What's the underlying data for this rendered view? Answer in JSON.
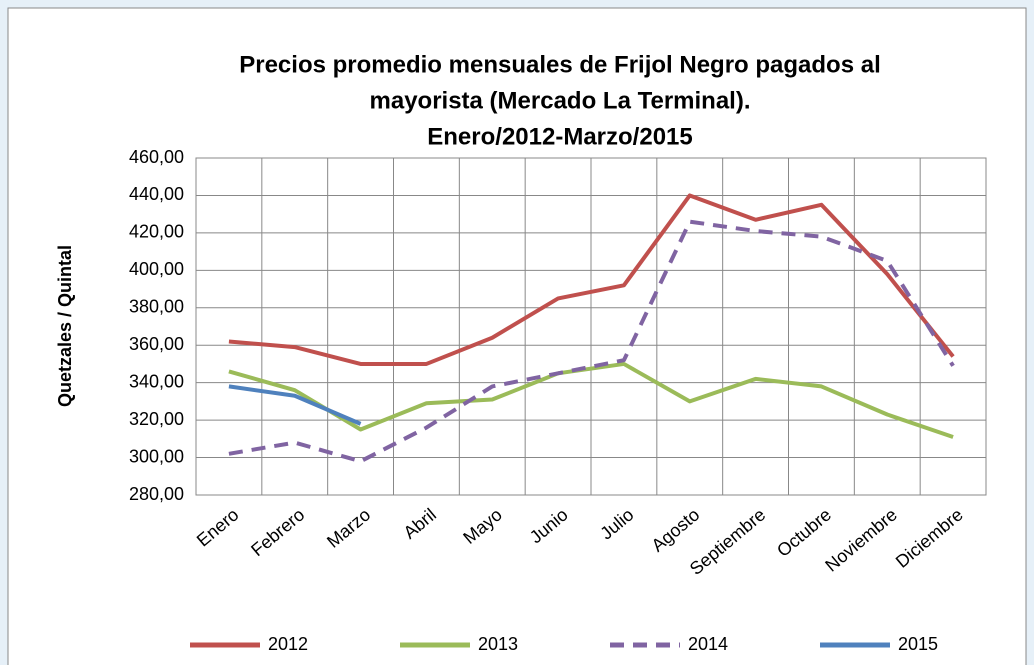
{
  "chart_data": {
    "type": "line",
    "title": [
      "Precios promedio mensuales de Frijol Negro pagados al",
      "mayorista (Mercado La Terminal).",
      "Enero/2012-Marzo/2015"
    ],
    "y_label": "Quetzales / Quintal",
    "categories": [
      "Enero",
      "Febrero",
      "Marzo",
      "Abril",
      "Mayo",
      "Junio",
      "Julio",
      "Agosto",
      "Septiembre",
      "Octubre",
      "Noviembre",
      "Diciembre"
    ],
    "series": [
      {
        "name": "2012",
        "color": "#c0504d",
        "values": [
          362,
          359,
          350,
          350,
          364,
          385,
          392,
          440,
          427,
          435,
          398,
          354
        ]
      },
      {
        "name": "2013",
        "color": "#9bbb59",
        "values": [
          346,
          336,
          315,
          329,
          331,
          345,
          350,
          330,
          342,
          338,
          323,
          311
        ]
      },
      {
        "name": "2014",
        "color": "#8064a2",
        "dashed": true,
        "values": [
          302,
          308,
          298,
          316,
          338,
          345,
          352,
          426,
          421,
          418,
          405,
          349
        ]
      },
      {
        "name": "2015",
        "color": "#4f81bd",
        "values": [
          338,
          333,
          318,
          null,
          null,
          null,
          null,
          null,
          null,
          null,
          null,
          null
        ]
      }
    ],
    "ylim": [
      280,
      460
    ],
    "yticks": [
      {
        "value": 280,
        "label": "280,00"
      },
      {
        "value": 300,
        "label": "300,00"
      },
      {
        "value": 320,
        "label": "320,00"
      },
      {
        "value": 340,
        "label": "340,00"
      },
      {
        "value": 360,
        "label": "360,00"
      },
      {
        "value": 380,
        "label": "380,00"
      },
      {
        "value": 400,
        "label": "400,00"
      },
      {
        "value": 420,
        "label": "420,00"
      },
      {
        "value": 440,
        "label": "440,00"
      },
      {
        "value": 460,
        "label": "460,00"
      }
    ],
    "grid": true,
    "legend": "bottom"
  }
}
